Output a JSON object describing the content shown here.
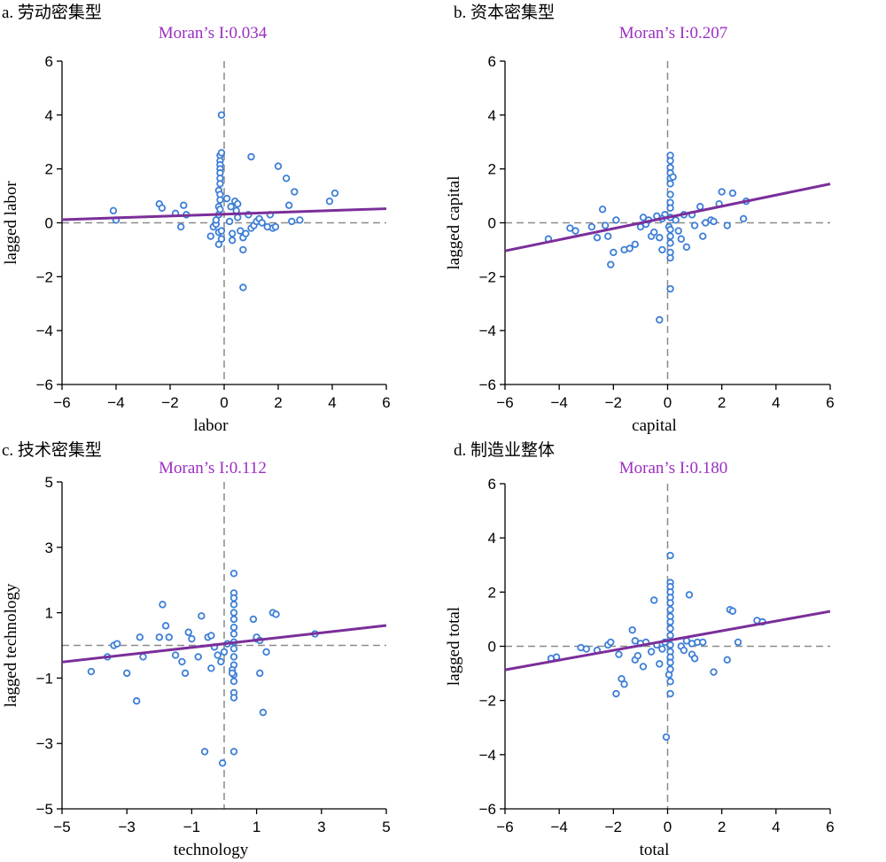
{
  "colors": {
    "regression": "#7b2e9a",
    "moran": "#9b2fc0",
    "points": "#3d7fd6",
    "reference": "#8a8a8a"
  },
  "chart_data": [
    {
      "type": "scatter",
      "panel_label": "a. 劳动密集型",
      "annotation": "Moran’s I:0.034",
      "xlabel": "labor",
      "ylabel": "lagged labor",
      "xlim": [
        -6,
        6
      ],
      "ylim": [
        -6,
        6
      ],
      "xticks": [
        -6,
        -4,
        -2,
        0,
        2,
        4,
        6
      ],
      "yticks": [
        -6,
        -4,
        -2,
        0,
        2,
        4,
        6
      ],
      "tick_labels_x": [
        "−6",
        "−4",
        "−2",
        "0",
        "2",
        "4",
        "6"
      ],
      "tick_labels_y": [
        "−6",
        "−4",
        "−2",
        "0",
        "2",
        "4",
        "6"
      ],
      "slope": 0.034,
      "intercept": 0.32,
      "points": [
        [
          -4.1,
          0.45
        ],
        [
          -4.0,
          0.1
        ],
        [
          -2.4,
          0.7
        ],
        [
          -2.3,
          0.55
        ],
        [
          -1.8,
          0.35
        ],
        [
          -1.5,
          0.65
        ],
        [
          -1.4,
          0.3
        ],
        [
          -1.6,
          -0.15
        ],
        [
          -0.4,
          -0.15
        ],
        [
          -0.3,
          -0.05
        ],
        [
          -0.5,
          -0.5
        ],
        [
          -0.3,
          0.1
        ],
        [
          -0.2,
          1.2
        ],
        [
          -0.2,
          0.6
        ],
        [
          -0.2,
          0.3
        ],
        [
          -0.15,
          2.5
        ],
        [
          -0.15,
          2.3
        ],
        [
          -0.15,
          2.15
        ],
        [
          -0.15,
          2.0
        ],
        [
          -0.15,
          1.85
        ],
        [
          -0.15,
          1.65
        ],
        [
          -0.15,
          1.45
        ],
        [
          -0.15,
          1.05
        ],
        [
          -0.15,
          0.85
        ],
        [
          -0.15,
          0.5
        ],
        [
          -0.1,
          2.6
        ],
        [
          -0.1,
          4.0
        ],
        [
          -0.2,
          -0.35
        ],
        [
          -0.1,
          -0.6
        ],
        [
          -0.2,
          -0.8
        ],
        [
          0.1,
          0.9
        ],
        [
          0.2,
          0.05
        ],
        [
          0.3,
          -0.4
        ],
        [
          0.3,
          -0.65
        ],
        [
          0.4,
          0.8
        ],
        [
          0.45,
          0.45
        ],
        [
          0.5,
          0.7
        ],
        [
          0.5,
          0.2
        ],
        [
          0.6,
          -0.3
        ],
        [
          0.7,
          -0.55
        ],
        [
          0.7,
          -1.0
        ],
        [
          0.8,
          -0.4
        ],
        [
          0.9,
          0.3
        ],
        [
          1.0,
          2.45
        ],
        [
          1.0,
          -0.2
        ],
        [
          1.1,
          -0.1
        ],
        [
          1.2,
          0.05
        ],
        [
          1.3,
          0.15
        ],
        [
          1.4,
          0.0
        ],
        [
          1.6,
          -0.15
        ],
        [
          1.7,
          0.3
        ],
        [
          1.8,
          -0.2
        ],
        [
          1.9,
          -0.15
        ],
        [
          2.0,
          2.1
        ],
        [
          2.3,
          1.65
        ],
        [
          2.4,
          0.65
        ],
        [
          2.5,
          0.05
        ],
        [
          2.6,
          1.15
        ],
        [
          2.8,
          0.1
        ],
        [
          3.9,
          0.8
        ],
        [
          4.1,
          1.1
        ],
        [
          0.7,
          -2.4
        ],
        [
          -0.1,
          -0.3
        ],
        [
          0.25,
          0.6
        ]
      ]
    },
    {
      "type": "scatter",
      "panel_label": "b. 资本密集型",
      "annotation": "Moran’s I:0.207",
      "xlabel": "capital",
      "ylabel": "lagged capital",
      "xlim": [
        -6,
        6
      ],
      "ylim": [
        -6,
        6
      ],
      "xticks": [
        -6,
        -4,
        -2,
        0,
        2,
        4,
        6
      ],
      "yticks": [
        -6,
        -4,
        -2,
        0,
        2,
        4,
        6
      ],
      "tick_labels_x": [
        "−6",
        "−4",
        "−2",
        "0",
        "2",
        "4",
        "6"
      ],
      "tick_labels_y": [
        "−6",
        "−4",
        "−2",
        "0",
        "2",
        "4",
        "6"
      ],
      "slope": 0.207,
      "intercept": 0.2,
      "points": [
        [
          -4.4,
          -0.6
        ],
        [
          -3.6,
          -0.2
        ],
        [
          -3.4,
          -0.3
        ],
        [
          -2.8,
          -0.15
        ],
        [
          -2.6,
          -0.55
        ],
        [
          -2.4,
          0.5
        ],
        [
          -2.3,
          -0.1
        ],
        [
          -2.2,
          -0.5
        ],
        [
          -2.1,
          -1.55
        ],
        [
          -2.0,
          -1.1
        ],
        [
          -1.9,
          0.1
        ],
        [
          -1.6,
          -1.0
        ],
        [
          -1.4,
          -0.95
        ],
        [
          -1.2,
          -0.8
        ],
        [
          -1.0,
          -0.15
        ],
        [
          -0.9,
          0.2
        ],
        [
          -0.8,
          -0.05
        ],
        [
          -0.7,
          0.1
        ],
        [
          -0.6,
          -0.5
        ],
        [
          -0.5,
          -0.35
        ],
        [
          -0.4,
          0.25
        ],
        [
          -0.3,
          -0.55
        ],
        [
          -0.2,
          -1.0
        ],
        [
          -0.1,
          0.3
        ],
        [
          0.05,
          -0.15
        ],
        [
          0.1,
          2.5
        ],
        [
          0.1,
          2.3
        ],
        [
          0.1,
          2.05
        ],
        [
          0.1,
          1.85
        ],
        [
          0.1,
          1.65
        ],
        [
          0.1,
          1.45
        ],
        [
          0.1,
          1.05
        ],
        [
          0.1,
          0.75
        ],
        [
          0.1,
          0.55
        ],
        [
          0.1,
          0.2
        ],
        [
          0.1,
          -0.25
        ],
        [
          0.1,
          -0.5
        ],
        [
          0.1,
          -0.75
        ],
        [
          0.1,
          -1.1
        ],
        [
          0.1,
          -1.3
        ],
        [
          0.1,
          -2.45
        ],
        [
          -0.3,
          -3.6
        ],
        [
          0.2,
          1.7
        ],
        [
          0.3,
          0.1
        ],
        [
          0.4,
          -0.3
        ],
        [
          0.5,
          -0.6
        ],
        [
          0.6,
          0.3
        ],
        [
          0.7,
          -0.9
        ],
        [
          0.9,
          0.3
        ],
        [
          1.0,
          -0.1
        ],
        [
          1.2,
          0.6
        ],
        [
          1.3,
          -0.5
        ],
        [
          1.4,
          0.0
        ],
        [
          1.6,
          0.1
        ],
        [
          1.7,
          0.05
        ],
        [
          1.9,
          0.7
        ],
        [
          2.0,
          1.15
        ],
        [
          2.2,
          -0.1
        ],
        [
          2.4,
          1.1
        ],
        [
          2.8,
          0.15
        ],
        [
          2.9,
          0.8
        ],
        [
          -0.2,
          0.15
        ]
      ]
    },
    {
      "type": "scatter",
      "panel_label": "c. 技术密集型",
      "annotation": "Moran’s I:0.112",
      "xlabel": "technology",
      "ylabel": "lagged technology",
      "xlim": [
        -5,
        5
      ],
      "ylim": [
        -5,
        5
      ],
      "xticks": [
        -5,
        -3,
        -1,
        1,
        3,
        5
      ],
      "yticks": [
        -5,
        -3,
        -1,
        1,
        3,
        5
      ],
      "tick_labels_x": [
        "−5",
        "−3",
        "−1",
        "1",
        "3",
        "5"
      ],
      "tick_labels_y": [
        "−5",
        "−3",
        "−1",
        "1",
        "3",
        "5"
      ],
      "slope": 0.112,
      "intercept": 0.05,
      "points": [
        [
          -4.1,
          -0.8
        ],
        [
          -3.6,
          -0.35
        ],
        [
          -3.4,
          0.0
        ],
        [
          -3.3,
          0.05
        ],
        [
          -3.0,
          -0.85
        ],
        [
          -2.7,
          -1.7
        ],
        [
          -2.6,
          0.25
        ],
        [
          -2.5,
          -0.35
        ],
        [
          -2.0,
          0.25
        ],
        [
          -1.9,
          1.25
        ],
        [
          -1.8,
          0.6
        ],
        [
          -1.7,
          0.25
        ],
        [
          -1.5,
          -0.3
        ],
        [
          -1.3,
          -0.5
        ],
        [
          -1.2,
          -0.85
        ],
        [
          -1.1,
          0.4
        ],
        [
          -1.0,
          0.2
        ],
        [
          -0.8,
          -0.35
        ],
        [
          -0.7,
          0.9
        ],
        [
          -0.6,
          -3.25
        ],
        [
          -0.5,
          0.25
        ],
        [
          -0.4,
          -0.7
        ],
        [
          -0.3,
          -0.05
        ],
        [
          -0.2,
          -0.3
        ],
        [
          -0.1,
          -0.5
        ],
        [
          0.0,
          -0.2
        ],
        [
          -0.05,
          -3.6
        ],
        [
          0.3,
          2.2
        ],
        [
          0.3,
          1.6
        ],
        [
          0.3,
          1.45
        ],
        [
          0.3,
          1.25
        ],
        [
          0.3,
          1.0
        ],
        [
          0.3,
          0.8
        ],
        [
          0.3,
          0.55
        ],
        [
          0.3,
          0.35
        ],
        [
          0.3,
          0.1
        ],
        [
          0.3,
          -0.1
        ],
        [
          0.3,
          -0.35
        ],
        [
          0.3,
          -0.6
        ],
        [
          0.3,
          -0.9
        ],
        [
          0.3,
          -1.1
        ],
        [
          0.3,
          -1.45
        ],
        [
          0.3,
          -1.6
        ],
        [
          0.3,
          -3.25
        ],
        [
          0.25,
          -0.75
        ],
        [
          0.25,
          -0.85
        ],
        [
          0.9,
          0.8
        ],
        [
          1.0,
          0.2
        ],
        [
          1.1,
          -0.85
        ],
        [
          1.2,
          -2.05
        ],
        [
          1.3,
          -0.2
        ],
        [
          1.5,
          1.0
        ],
        [
          1.6,
          0.95
        ],
        [
          1.0,
          0.25
        ],
        [
          1.1,
          0.15
        ],
        [
          2.8,
          0.35
        ],
        [
          -0.4,
          0.3
        ],
        [
          0.1,
          0.05
        ]
      ]
    },
    {
      "type": "scatter",
      "panel_label": "d. 制造业整体",
      "annotation": "Moran’s I:0.180",
      "xlabel": "total",
      "ylabel": "lagged total",
      "xlim": [
        -6,
        6
      ],
      "ylim": [
        -6,
        6
      ],
      "xticks": [
        -6,
        -4,
        -2,
        0,
        2,
        4,
        6
      ],
      "yticks": [
        -6,
        -4,
        -2,
        0,
        2,
        4,
        6
      ],
      "tick_labels_x": [
        "−6",
        "−4",
        "−2",
        "0",
        "2",
        "4",
        "6"
      ],
      "tick_labels_y": [
        "−6",
        "−4",
        "−2",
        "0",
        "2",
        "4",
        "6"
      ],
      "slope": 0.18,
      "intercept": 0.21,
      "points": [
        [
          -4.3,
          -0.45
        ],
        [
          -4.1,
          -0.4
        ],
        [
          -3.2,
          -0.05
        ],
        [
          -3.0,
          -0.1
        ],
        [
          -2.6,
          -0.15
        ],
        [
          -2.2,
          0.05
        ],
        [
          -2.1,
          0.15
        ],
        [
          -1.9,
          -1.75
        ],
        [
          -1.8,
          -0.3
        ],
        [
          -1.7,
          -1.2
        ],
        [
          -1.6,
          -1.4
        ],
        [
          -1.3,
          0.6
        ],
        [
          -1.2,
          0.2
        ],
        [
          -1.2,
          -0.5
        ],
        [
          -1.1,
          -0.35
        ],
        [
          -1.0,
          0.1
        ],
        [
          -0.9,
          -0.75
        ],
        [
          -0.8,
          0.15
        ],
        [
          -0.6,
          -0.2
        ],
        [
          -0.5,
          1.7
        ],
        [
          -0.4,
          0.05
        ],
        [
          -0.3,
          -0.65
        ],
        [
          -0.2,
          -0.1
        ],
        [
          -0.1,
          0.15
        ],
        [
          -0.05,
          -3.35
        ],
        [
          0.05,
          -1.05
        ],
        [
          0.1,
          3.35
        ],
        [
          0.1,
          2.35
        ],
        [
          0.1,
          2.2
        ],
        [
          0.1,
          2.0
        ],
        [
          0.1,
          1.8
        ],
        [
          0.1,
          1.6
        ],
        [
          0.1,
          1.35
        ],
        [
          0.1,
          1.1
        ],
        [
          0.1,
          0.9
        ],
        [
          0.1,
          0.65
        ],
        [
          0.1,
          0.4
        ],
        [
          0.1,
          0.05
        ],
        [
          0.1,
          -0.2
        ],
        [
          0.1,
          -0.4
        ],
        [
          0.1,
          -0.6
        ],
        [
          0.1,
          -0.85
        ],
        [
          0.1,
          -1.3
        ],
        [
          0.1,
          -1.75
        ],
        [
          0.5,
          0.0
        ],
        [
          0.6,
          -0.15
        ],
        [
          0.8,
          1.9
        ],
        [
          0.9,
          -0.3
        ],
        [
          1.0,
          -0.45
        ],
        [
          1.1,
          0.15
        ],
        [
          1.3,
          0.15
        ],
        [
          1.7,
          -0.95
        ],
        [
          2.2,
          -0.5
        ],
        [
          2.3,
          1.35
        ],
        [
          2.4,
          1.3
        ],
        [
          2.6,
          0.15
        ],
        [
          3.3,
          0.95
        ],
        [
          3.5,
          0.9
        ],
        [
          0.7,
          0.2
        ],
        [
          0.9,
          0.1
        ]
      ]
    }
  ]
}
